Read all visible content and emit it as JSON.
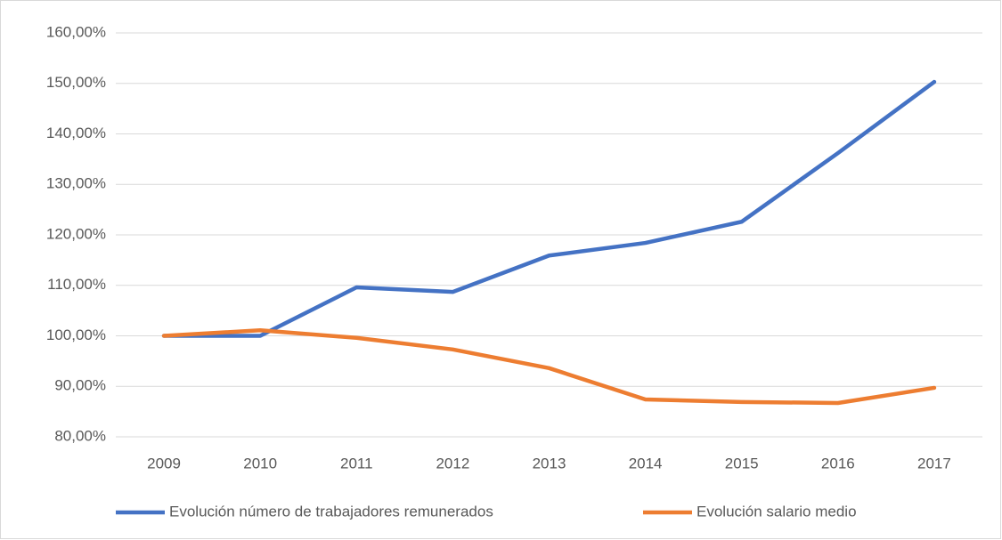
{
  "chart_data": {
    "type": "line",
    "categories": [
      "2009",
      "2010",
      "2011",
      "2012",
      "2013",
      "2014",
      "2015",
      "2016",
      "2017"
    ],
    "series": [
      {
        "name": "Evolución número de trabajadores remunerados",
        "color": "#4472c4",
        "values": [
          100,
          100,
          109.6,
          108.7,
          115.9,
          118.4,
          122.6,
          136.2,
          150.3
        ]
      },
      {
        "name": "Evolución salario medio",
        "color": "#ed7d31",
        "values": [
          100,
          101.1,
          99.6,
          97.3,
          93.6,
          87.4,
          86.9,
          86.7,
          89.7
        ]
      }
    ],
    "ylim": [
      80,
      160
    ],
    "yticks": [
      {
        "value": 80,
        "label": "80,00%"
      },
      {
        "value": 90,
        "label": "90,00%"
      },
      {
        "value": 100,
        "label": "100,00%"
      },
      {
        "value": 110,
        "label": "110,00%"
      },
      {
        "value": 120,
        "label": "120,00%"
      },
      {
        "value": 130,
        "label": "130,00%"
      },
      {
        "value": 140,
        "label": "140,00%"
      },
      {
        "value": 150,
        "label": "150,00%"
      },
      {
        "value": 160,
        "label": "160,00%"
      }
    ],
    "grid": true,
    "legend": "bottom"
  }
}
